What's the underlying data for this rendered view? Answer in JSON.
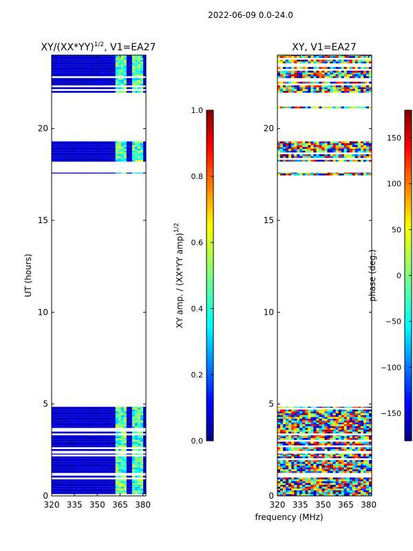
{
  "figure": {
    "suptitle": "2022-06-09 0.0-24.0",
    "xlabel_shared": "frequency (MHz)"
  },
  "chart_data": [
    {
      "type": "heatmap",
      "title": "XY/(XX*YY)^{1/2}, V1=EA27",
      "title_parts": {
        "main": "XY/(XX*YY)",
        "sup": "1/2",
        "tail": ", V1=EA27"
      },
      "ylabel": "UT (hours)",
      "xlim": [
        320,
        382
      ],
      "ylim": [
        0,
        24
      ],
      "xticks": [
        320,
        335,
        350,
        365,
        380
      ],
      "yticks": [
        0,
        5,
        10,
        15,
        20
      ],
      "quantity": "amplitude",
      "colorbar": {
        "label": "XY amp. / (XX*YY amp)^{1/2}",
        "label_parts": {
          "main": "XY amp. / (XX*YY amp)",
          "sup": "1/2"
        },
        "range": [
          0.0,
          1.0
        ],
        "ticks": [
          "0.0",
          "0.2",
          "0.4",
          "0.6",
          "0.8",
          "1.0"
        ]
      },
      "data_bands_hours": [
        [
          0.0,
          1.1
        ],
        [
          1.25,
          2.3
        ],
        [
          2.45,
          3.3
        ],
        [
          3.4,
          4.85
        ],
        [
          17.45,
          17.6
        ],
        [
          18.2,
          19.3
        ],
        [
          21.1,
          21.2
        ],
        [
          21.95,
          24.0
        ]
      ],
      "hot_freq_ranges_mhz": [
        [
          362,
          370
        ],
        [
          373,
          381
        ]
      ]
    },
    {
      "type": "heatmap",
      "title": "XY, V1=EA27",
      "xlim": [
        320,
        382
      ],
      "ylim": [
        0,
        24
      ],
      "xticks": [
        320,
        335,
        350,
        365,
        380
      ],
      "yticks": [
        0,
        5,
        10,
        15,
        20
      ],
      "quantity": "phase",
      "colorbar": {
        "label": "phase (deg.)",
        "range": [
          -180,
          180
        ],
        "ticks": [
          "−150",
          "−100",
          "−50",
          "0",
          "50",
          "100",
          "150"
        ]
      },
      "data_bands_hours": [
        [
          0.0,
          1.1
        ],
        [
          1.25,
          2.3
        ],
        [
          2.45,
          3.3
        ],
        [
          3.4,
          4.85
        ],
        [
          17.45,
          17.6
        ],
        [
          18.2,
          19.3
        ],
        [
          21.1,
          21.2
        ],
        [
          21.95,
          24.0
        ]
      ]
    }
  ]
}
